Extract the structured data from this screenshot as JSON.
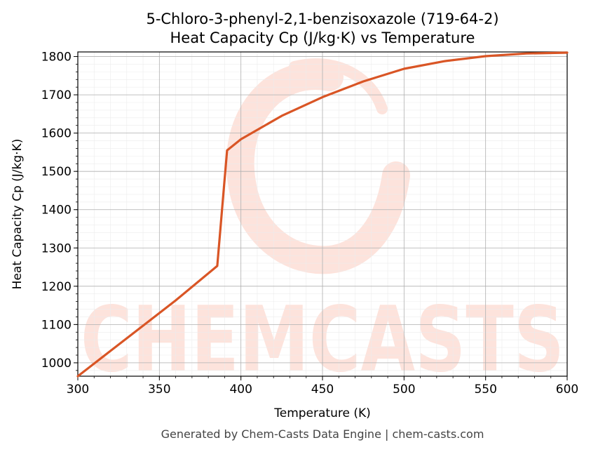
{
  "chart_data": {
    "type": "line",
    "title": "5-Chloro-3-phenyl-2,1-benzisoxazole (719-64-2)",
    "subtitle": "Heat Capacity Cp (J/kg·K) vs Temperature",
    "xlabel": "Temperature (K)",
    "ylabel": "Heat Capacity Cp (J/kg·K)",
    "xlim": [
      300,
      600
    ],
    "ylim": [
      965,
      1812
    ],
    "xticks": [
      300,
      350,
      400,
      450,
      500,
      550,
      600
    ],
    "yticks": [
      1000,
      1100,
      1200,
      1300,
      1400,
      1500,
      1600,
      1700,
      1800
    ],
    "grid": true,
    "line_color": "#d95525",
    "series": [
      {
        "x": [
          300,
          320,
          340,
          360,
          385.5,
          391.5,
          400,
          425,
          450,
          475,
          500,
          525,
          550,
          575,
          600
        ],
        "values": [
          965,
          1031,
          1097,
          1163,
          1253,
          1555,
          1584,
          1645,
          1694,
          1735,
          1768,
          1788,
          1801,
          1808,
          1812
        ]
      }
    ]
  },
  "footer": "Generated by Chem-Casts Data Engine | chem-casts.com",
  "watermark": {
    "text": "CHEMCASTS",
    "color": "#fde3dc"
  }
}
